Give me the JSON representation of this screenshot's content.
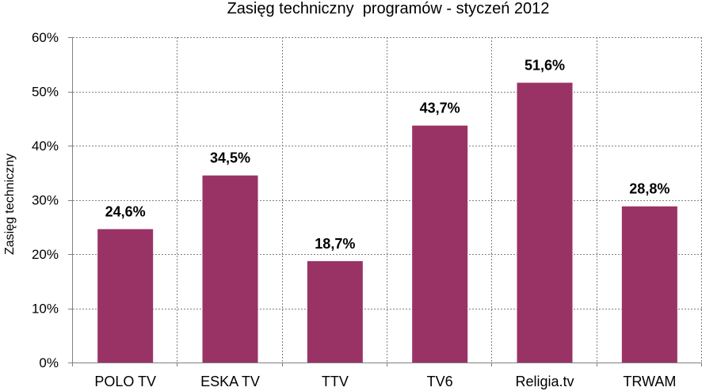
{
  "chart_data": {
    "type": "bar",
    "title": "Zasięg techniczny  programów - styczeń 2012",
    "ylabel": "Zasięg techniczny",
    "xlabel": "",
    "categories": [
      "POLO TV",
      "ESKA TV",
      "TTV",
      "TV6",
      "Religia.tv",
      "TRWAM"
    ],
    "values": [
      24.6,
      34.5,
      18.7,
      43.7,
      51.6,
      28.8
    ],
    "data_labels": [
      "24,6%",
      "34,5%",
      "18,7%",
      "43,7%",
      "51,6%",
      "28,8%"
    ],
    "ylim": [
      0,
      60
    ],
    "yticks": [
      0,
      10,
      20,
      30,
      40,
      50,
      60
    ],
    "ytick_labels": [
      "0%",
      "10%",
      "20%",
      "30%",
      "40%",
      "50%",
      "60%"
    ],
    "grid": true,
    "legend": "none",
    "colors": {
      "bar": "#993366",
      "grid": "#808080",
      "axis": "#808080"
    }
  }
}
